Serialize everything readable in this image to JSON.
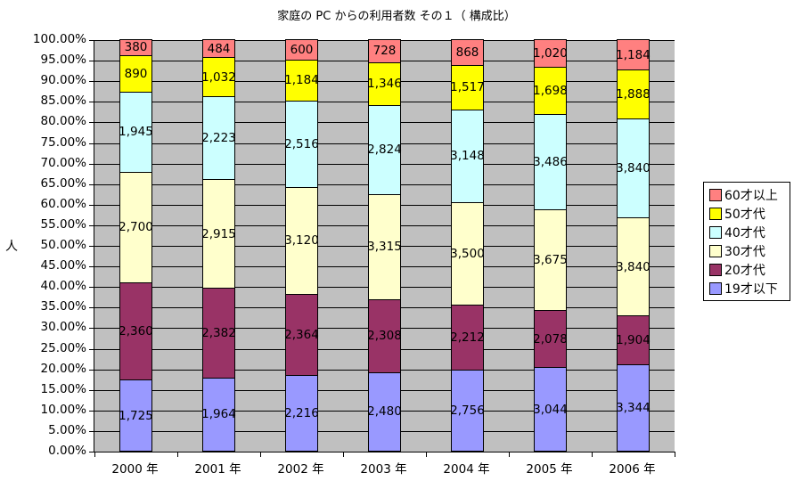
{
  "chart_data": {
    "type": "bar",
    "stacked": "percent",
    "title": "家庭の PC からの利用者数 その１（ 構成比）",
    "xlabel": "",
    "ylabel": "人",
    "ylim": [
      0,
      100
    ],
    "y_ticks": [
      "0.00%",
      "5.00%",
      "10.00%",
      "15.00%",
      "20.00%",
      "25.00%",
      "30.00%",
      "35.00%",
      "40.00%",
      "45.00%",
      "50.00%",
      "55.00%",
      "60.00%",
      "65.00%",
      "70.00%",
      "75.00%",
      "80.00%",
      "85.00%",
      "90.00%",
      "95.00%",
      "100.00%"
    ],
    "categories": [
      "2000 年",
      "2001 年",
      "2002 年",
      "2003 年",
      "2004 年",
      "2005 年",
      "2006 年"
    ],
    "series": [
      {
        "name": "19才以下",
        "color": "#9999ff",
        "values": [
          1725,
          1964,
          2216,
          2480,
          2756,
          3044,
          3344
        ]
      },
      {
        "name": "20才代",
        "color": "#993366",
        "values": [
          2360,
          2382,
          2364,
          2308,
          2212,
          2078,
          1904
        ]
      },
      {
        "name": "30才代",
        "color": "#ffffcc",
        "values": [
          2700,
          2915,
          3120,
          3315,
          3500,
          3675,
          3840
        ]
      },
      {
        "name": "40才代",
        "color": "#ccffff",
        "values": [
          1945,
          2223,
          2516,
          2824,
          3148,
          3486,
          3840
        ]
      },
      {
        "name": "50才代",
        "color": "#ffff00",
        "values": [
          890,
          1032,
          1184,
          1346,
          1517,
          1698,
          1888
        ]
      },
      {
        "name": "60才以上",
        "color": "#ff8080",
        "values": [
          380,
          484,
          600,
          728,
          868,
          1020,
          1184
        ]
      }
    ],
    "legend_order": [
      "60才以上",
      "50才代",
      "40才代",
      "30才代",
      "20才代",
      "19才以下"
    ],
    "legend_position": "right",
    "grid": true,
    "plot_background": "#c0c0c0"
  }
}
